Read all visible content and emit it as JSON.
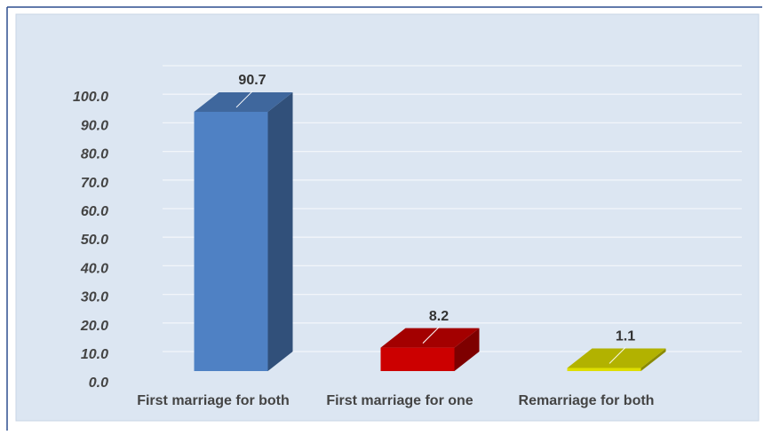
{
  "chart_data": {
    "type": "bar3d",
    "categories": [
      "First marriage for both",
      "First marriage for one",
      "Remarriage for both"
    ],
    "values": [
      90.7,
      8.2,
      1.1
    ],
    "colors": [
      "#4f81c4",
      "#cc0000",
      "#dede00"
    ],
    "ylim": [
      0,
      100
    ],
    "yticks": [
      {
        "value": 0,
        "label": "0.0"
      },
      {
        "value": 10,
        "label": "10.0"
      },
      {
        "value": 20,
        "label": "20.0"
      },
      {
        "value": 30,
        "label": "30.0"
      },
      {
        "value": 40,
        "label": "40.0"
      },
      {
        "value": 50,
        "label": "50.0"
      },
      {
        "value": 60,
        "label": "60.0"
      },
      {
        "value": 70,
        "label": "70.0"
      },
      {
        "value": 80,
        "label": "80.0"
      },
      {
        "value": 90,
        "label": "90.0"
      },
      {
        "value": 100,
        "label": "100.0"
      }
    ],
    "grid": true
  }
}
